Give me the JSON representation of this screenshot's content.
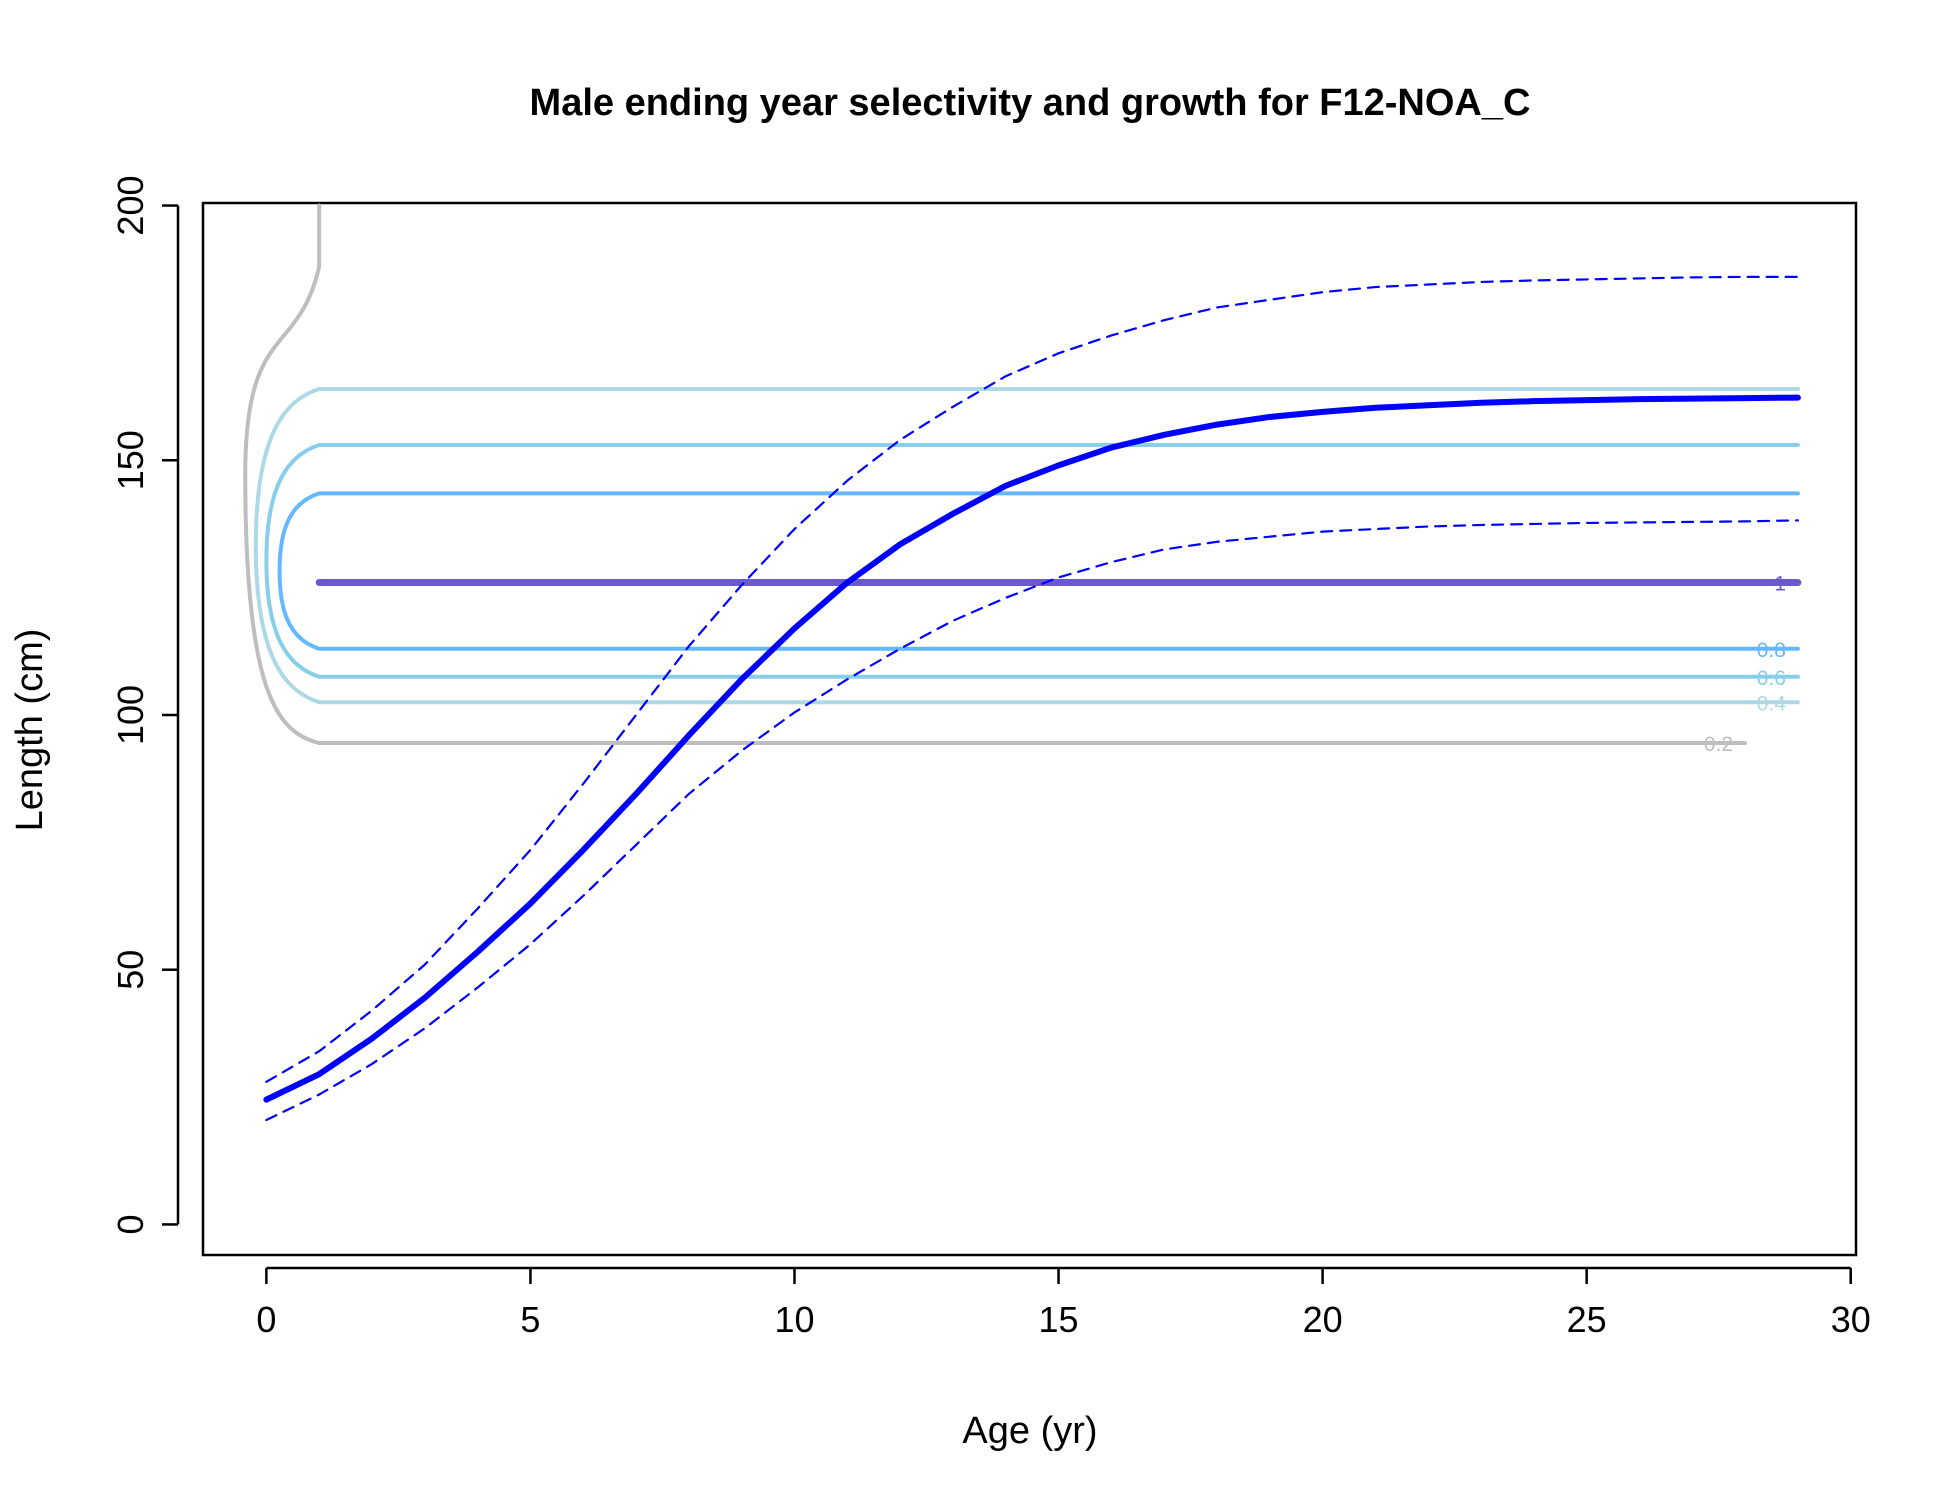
{
  "chart_data": {
    "type": "line",
    "title": "Male ending year selectivity and growth for F12-NOA_C",
    "xlabel": "Age (yr)",
    "ylabel": "Length (cm)",
    "xlim": [
      -1.2,
      30.1
    ],
    "ylim": [
      -6,
      200.5
    ],
    "xticks": [
      0,
      5,
      10,
      15,
      20,
      25,
      30
    ],
    "yticks": [
      0,
      50,
      100,
      150,
      200
    ],
    "grid": false,
    "series": [
      {
        "role": "mean-length-at-age",
        "color": "#0000FF",
        "style": "solid",
        "x": [
          0,
          1,
          2,
          3,
          4,
          5,
          6,
          7,
          8,
          9,
          10,
          11,
          12,
          13,
          14,
          15,
          16,
          17,
          18,
          19,
          20,
          21,
          22,
          23,
          24,
          25,
          26,
          27,
          28,
          29
        ],
        "y": [
          24.5,
          29.5,
          36.5,
          44.5,
          53.5,
          63.0,
          73.5,
          84.5,
          96.0,
          107.0,
          117.0,
          126.0,
          133.5,
          139.5,
          145.0,
          149.0,
          152.5,
          155.0,
          157.0,
          158.5,
          159.5,
          160.3,
          160.8,
          161.3,
          161.6,
          161.8,
          162.0,
          162.1,
          162.2,
          162.3
        ]
      },
      {
        "role": "upper-interval",
        "color": "#0000FF",
        "style": "dashed",
        "x": [
          0,
          1,
          2,
          3,
          4,
          5,
          6,
          7,
          8,
          9,
          10,
          11,
          12,
          13,
          14,
          15,
          16,
          17,
          18,
          19,
          20,
          21,
          22,
          23,
          24,
          25,
          26,
          27,
          28,
          29
        ],
        "y": [
          28,
          34,
          42,
          51,
          62,
          73.5,
          86.5,
          100,
          113.5,
          125.5,
          136.5,
          146,
          154,
          160.5,
          166.5,
          171,
          174.5,
          177.5,
          180,
          181.5,
          183,
          184,
          184.5,
          185,
          185.3,
          185.5,
          185.7,
          185.9,
          186,
          186
        ]
      },
      {
        "role": "lower-interval",
        "color": "#0000FF",
        "style": "dashed",
        "x": [
          0,
          1,
          2,
          3,
          4,
          5,
          6,
          7,
          8,
          9,
          10,
          11,
          12,
          13,
          14,
          15,
          16,
          17,
          18,
          19,
          20,
          21,
          22,
          23,
          24,
          25,
          26,
          27,
          28,
          29
        ],
        "y": [
          20.5,
          25.5,
          31.5,
          38.5,
          46.5,
          55,
          64.5,
          74.5,
          84.5,
          93,
          100.5,
          107,
          113,
          118.5,
          123,
          127,
          130,
          132.5,
          134,
          135,
          136,
          136.5,
          137,
          137.3,
          137.5,
          137.7,
          137.8,
          137.9,
          138,
          138.2
        ]
      }
    ],
    "contours": [
      {
        "level": "0.2",
        "color": "#BEBEBE",
        "lower": 94.5,
        "upper": 200,
        "x_end": 28.0,
        "closed": false,
        "label": "0.2"
      },
      {
        "level": "0.4",
        "color": "#ADD8E6",
        "lower": 102.5,
        "upper": 164,
        "x_end": 29.0,
        "closed": true,
        "label": "0.4"
      },
      {
        "level": "0.6",
        "color": "#87CEEB",
        "lower": 107.5,
        "upper": 153,
        "x_end": 29.0,
        "closed": true,
        "label": "0.6"
      },
      {
        "level": "0.8",
        "color": "#63B8FF",
        "lower": 113,
        "upper": 143.5,
        "x_end": 29.0,
        "closed": true,
        "label": "0.8"
      },
      {
        "level": "1",
        "color": "#6A5ACD",
        "lower": 126,
        "upper": 126,
        "x_end": 29.0,
        "closed": false,
        "label": "1"
      }
    ]
  }
}
